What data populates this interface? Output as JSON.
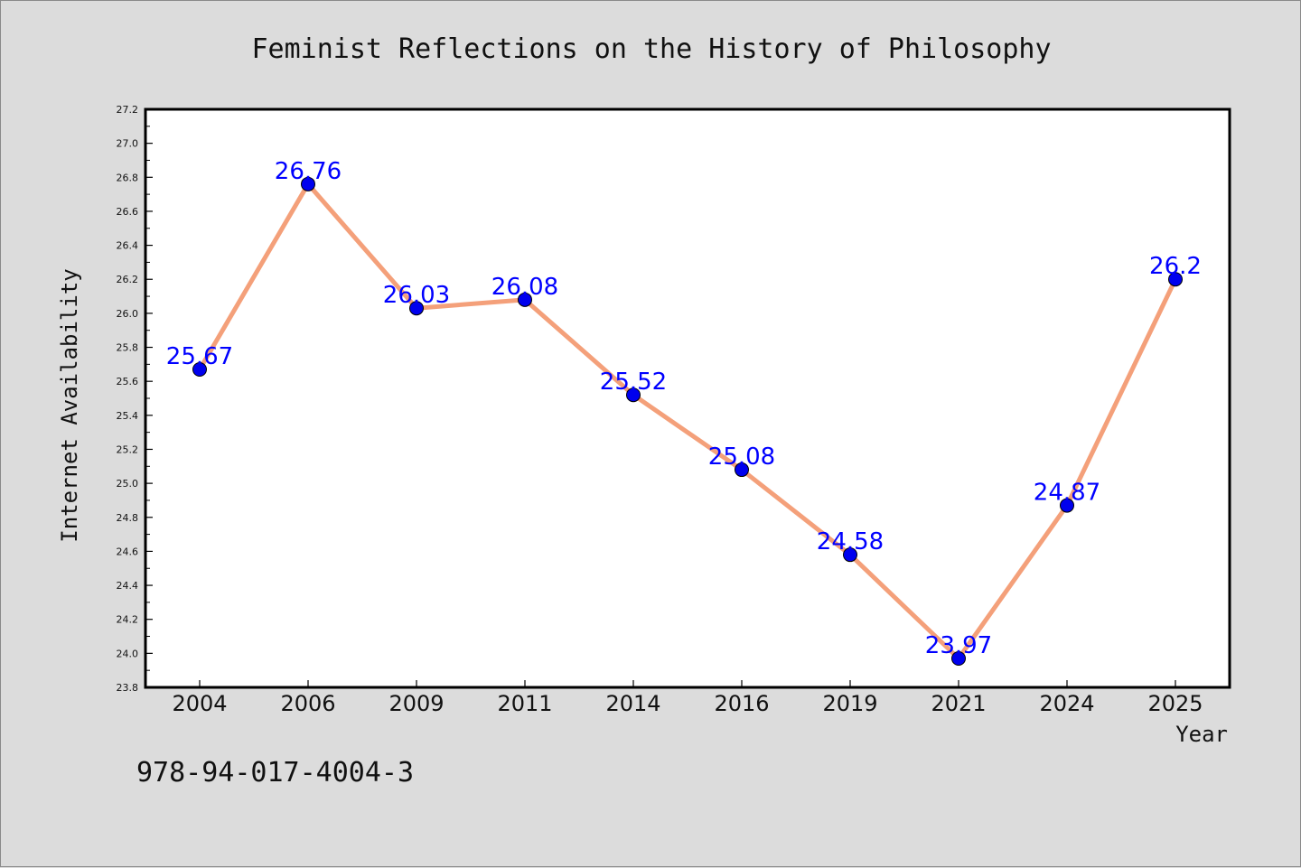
{
  "chart_data": {
    "type": "line",
    "title": "Feminist Reflections on the History of Philosophy",
    "xlabel": "Year",
    "ylabel": "Internet Availability",
    "categories": [
      "2004",
      "2006",
      "2009",
      "2011",
      "2014",
      "2016",
      "2019",
      "2021",
      "2024",
      "2025"
    ],
    "series": [
      {
        "values": [
          25.67,
          26.76,
          26.03,
          26.08,
          25.52,
          25.08,
          24.58,
          23.97,
          24.87,
          26.2
        ],
        "point_labels": [
          "25.67",
          "26.76",
          "26.03",
          "26.08",
          "25.52",
          "25.08",
          "24.58",
          "23.97",
          "24.87",
          "26.2"
        ],
        "line_color": "#f4a07a",
        "marker_color": "#0000ee"
      }
    ],
    "ylim": [
      23.8,
      27.2
    ],
    "yticks": [
      "23.8",
      "24.0",
      "24.2",
      "24.4",
      "24.6",
      "24.8",
      "25.0",
      "25.2",
      "25.4",
      "25.6",
      "25.8",
      "26.0",
      "26.2",
      "26.4",
      "26.6",
      "26.8",
      "27.0",
      "27.2"
    ],
    "grid": false,
    "legend": "none",
    "label_color": "#0000ff"
  },
  "footer": {
    "isbn": "978-94-017-4004-3"
  }
}
